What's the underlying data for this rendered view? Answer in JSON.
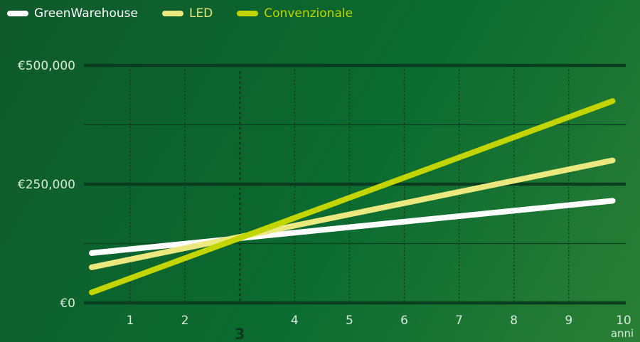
{
  "colors": {
    "background": "#0b6b30",
    "gridline": "#0a3d1f",
    "tick_text": "#d7ead9",
    "x_highlight_text": "#0a3d1f",
    "greenwarehouse": "#ffffff",
    "led": "#eae87e",
    "convenzionale": "#c2d500"
  },
  "chart_data": {
    "type": "line",
    "title": "",
    "xlabel": "anni",
    "ylabel": "",
    "xlim": [
      0.2,
      9.85
    ],
    "ylim": [
      0,
      500000
    ],
    "x_ticks": [
      1,
      2,
      3,
      4,
      5,
      6,
      7,
      8,
      9,
      10
    ],
    "x_highlight": 3,
    "y_ticks": [
      {
        "value": 0,
        "label": "€0"
      },
      {
        "value": 250000,
        "label": "€250,000"
      },
      {
        "value": 500000,
        "label": "€500,000"
      }
    ],
    "minor_y_gridlines": [
      125000,
      375000
    ],
    "legend_position": "top-left",
    "grid": true,
    "series": [
      {
        "name": "GreenWarehouse",
        "color_key": "greenwarehouse",
        "x": [
          0.3,
          9.8
        ],
        "y": [
          105000,
          215000
        ]
      },
      {
        "name": "LED",
        "color_key": "led",
        "x": [
          0.3,
          9.8
        ],
        "y": [
          75000,
          300000
        ]
      },
      {
        "name": "Convenzionale",
        "color_key": "convenzionale",
        "x": [
          0.3,
          9.8
        ],
        "y": [
          22000,
          425000
        ]
      }
    ]
  }
}
